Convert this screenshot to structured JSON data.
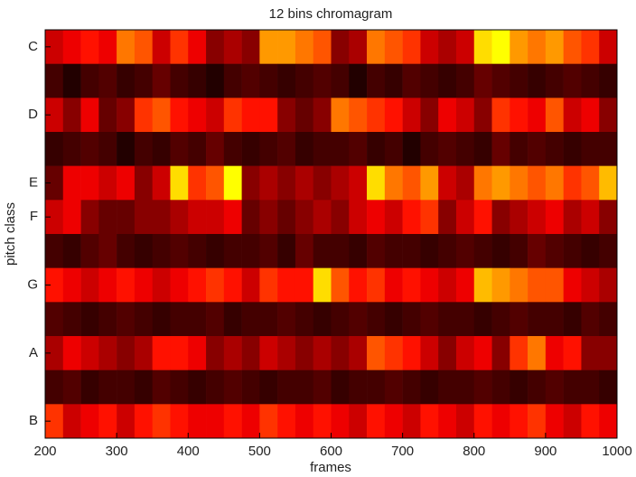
{
  "chart_data": {
    "type": "heatmap",
    "title": "12 bins chromagram",
    "xlabel": "frames",
    "ylabel": "pitch class",
    "colormap": "hot",
    "categories": [
      "C",
      null,
      "D",
      null,
      "E",
      "F",
      null,
      "G",
      null,
      "A",
      null,
      "B"
    ],
    "bins": [
      200,
      225,
      250,
      275,
      300,
      325,
      350,
      375,
      400,
      425,
      450,
      475,
      500,
      525,
      550,
      575,
      600,
      625,
      650,
      675,
      700,
      725,
      750,
      775,
      800,
      825,
      850,
      875,
      900,
      925,
      950,
      975,
      1000
    ],
    "xlim": [
      200,
      1000
    ],
    "xticks": [
      200,
      300,
      400,
      500,
      600,
      700,
      800,
      900,
      1000
    ],
    "values": [
      [
        0.3,
        0.35,
        0.4,
        0.35,
        0.55,
        0.5,
        0.3,
        0.45,
        0.35,
        0.2,
        0.25,
        0.2,
        0.6,
        0.6,
        0.55,
        0.5,
        0.2,
        0.25,
        0.55,
        0.5,
        0.45,
        0.3,
        0.25,
        0.3,
        0.7,
        0.75,
        0.6,
        0.55,
        0.6,
        0.5,
        0.45,
        0.3
      ],
      [
        0.1,
        0.05,
        0.1,
        0.12,
        0.08,
        0.1,
        0.15,
        0.1,
        0.08,
        0.05,
        0.1,
        0.12,
        0.1,
        0.08,
        0.1,
        0.12,
        0.1,
        0.05,
        0.1,
        0.08,
        0.12,
        0.1,
        0.08,
        0.1,
        0.15,
        0.12,
        0.1,
        0.08,
        0.1,
        0.12,
        0.1,
        0.08
      ],
      [
        0.3,
        0.2,
        0.35,
        0.15,
        0.2,
        0.45,
        0.5,
        0.4,
        0.35,
        0.3,
        0.45,
        0.4,
        0.4,
        0.2,
        0.15,
        0.2,
        0.55,
        0.5,
        0.45,
        0.4,
        0.3,
        0.2,
        0.35,
        0.3,
        0.2,
        0.45,
        0.4,
        0.35,
        0.5,
        0.3,
        0.35,
        0.2
      ],
      [
        0.08,
        0.1,
        0.12,
        0.1,
        0.05,
        0.1,
        0.08,
        0.12,
        0.1,
        0.15,
        0.1,
        0.08,
        0.1,
        0.12,
        0.08,
        0.1,
        0.1,
        0.12,
        0.08,
        0.1,
        0.05,
        0.1,
        0.12,
        0.1,
        0.08,
        0.15,
        0.1,
        0.12,
        0.1,
        0.08,
        0.1,
        0.1
      ],
      [
        0.15,
        0.35,
        0.35,
        0.3,
        0.35,
        0.2,
        0.3,
        0.7,
        0.45,
        0.5,
        0.75,
        0.2,
        0.25,
        0.2,
        0.25,
        0.2,
        0.25,
        0.3,
        0.7,
        0.55,
        0.5,
        0.6,
        0.3,
        0.25,
        0.55,
        0.6,
        0.55,
        0.5,
        0.55,
        0.45,
        0.5,
        0.65
      ],
      [
        0.3,
        0.35,
        0.2,
        0.15,
        0.15,
        0.2,
        0.2,
        0.25,
        0.3,
        0.3,
        0.35,
        0.15,
        0.2,
        0.15,
        0.2,
        0.25,
        0.2,
        0.3,
        0.35,
        0.3,
        0.4,
        0.45,
        0.2,
        0.3,
        0.4,
        0.2,
        0.25,
        0.3,
        0.35,
        0.25,
        0.3,
        0.2
      ],
      [
        0.1,
        0.08,
        0.12,
        0.15,
        0.1,
        0.08,
        0.1,
        0.12,
        0.1,
        0.08,
        0.1,
        0.1,
        0.12,
        0.08,
        0.15,
        0.1,
        0.1,
        0.08,
        0.12,
        0.1,
        0.1,
        0.08,
        0.1,
        0.12,
        0.1,
        0.08,
        0.1,
        0.15,
        0.12,
        0.1,
        0.08,
        0.1
      ],
      [
        0.4,
        0.35,
        0.3,
        0.35,
        0.4,
        0.35,
        0.3,
        0.35,
        0.4,
        0.45,
        0.4,
        0.3,
        0.45,
        0.4,
        0.4,
        0.7,
        0.5,
        0.4,
        0.45,
        0.35,
        0.4,
        0.35,
        0.3,
        0.35,
        0.65,
        0.6,
        0.55,
        0.5,
        0.5,
        0.35,
        0.3,
        0.25
      ],
      [
        0.12,
        0.1,
        0.08,
        0.1,
        0.12,
        0.1,
        0.08,
        0.1,
        0.1,
        0.12,
        0.08,
        0.1,
        0.1,
        0.12,
        0.1,
        0.08,
        0.1,
        0.12,
        0.1,
        0.08,
        0.1,
        0.12,
        0.1,
        0.1,
        0.08,
        0.1,
        0.12,
        0.1,
        0.1,
        0.08,
        0.12,
        0.1
      ],
      [
        0.25,
        0.35,
        0.3,
        0.25,
        0.2,
        0.25,
        0.4,
        0.4,
        0.35,
        0.2,
        0.25,
        0.2,
        0.3,
        0.25,
        0.2,
        0.25,
        0.2,
        0.25,
        0.5,
        0.45,
        0.4,
        0.3,
        0.2,
        0.3,
        0.35,
        0.2,
        0.45,
        0.55,
        0.35,
        0.4,
        0.2,
        0.2
      ],
      [
        0.1,
        0.12,
        0.08,
        0.1,
        0.1,
        0.08,
        0.12,
        0.1,
        0.08,
        0.1,
        0.12,
        0.1,
        0.08,
        0.1,
        0.1,
        0.12,
        0.08,
        0.1,
        0.1,
        0.12,
        0.1,
        0.08,
        0.1,
        0.1,
        0.12,
        0.1,
        0.08,
        0.1,
        0.12,
        0.1,
        0.1,
        0.08
      ],
      [
        0.45,
        0.3,
        0.35,
        0.4,
        0.3,
        0.4,
        0.45,
        0.4,
        0.35,
        0.35,
        0.4,
        0.35,
        0.45,
        0.4,
        0.35,
        0.4,
        0.35,
        0.3,
        0.4,
        0.35,
        0.3,
        0.4,
        0.35,
        0.3,
        0.4,
        0.35,
        0.4,
        0.45,
        0.35,
        0.3,
        0.4,
        0.35
      ]
    ]
  }
}
